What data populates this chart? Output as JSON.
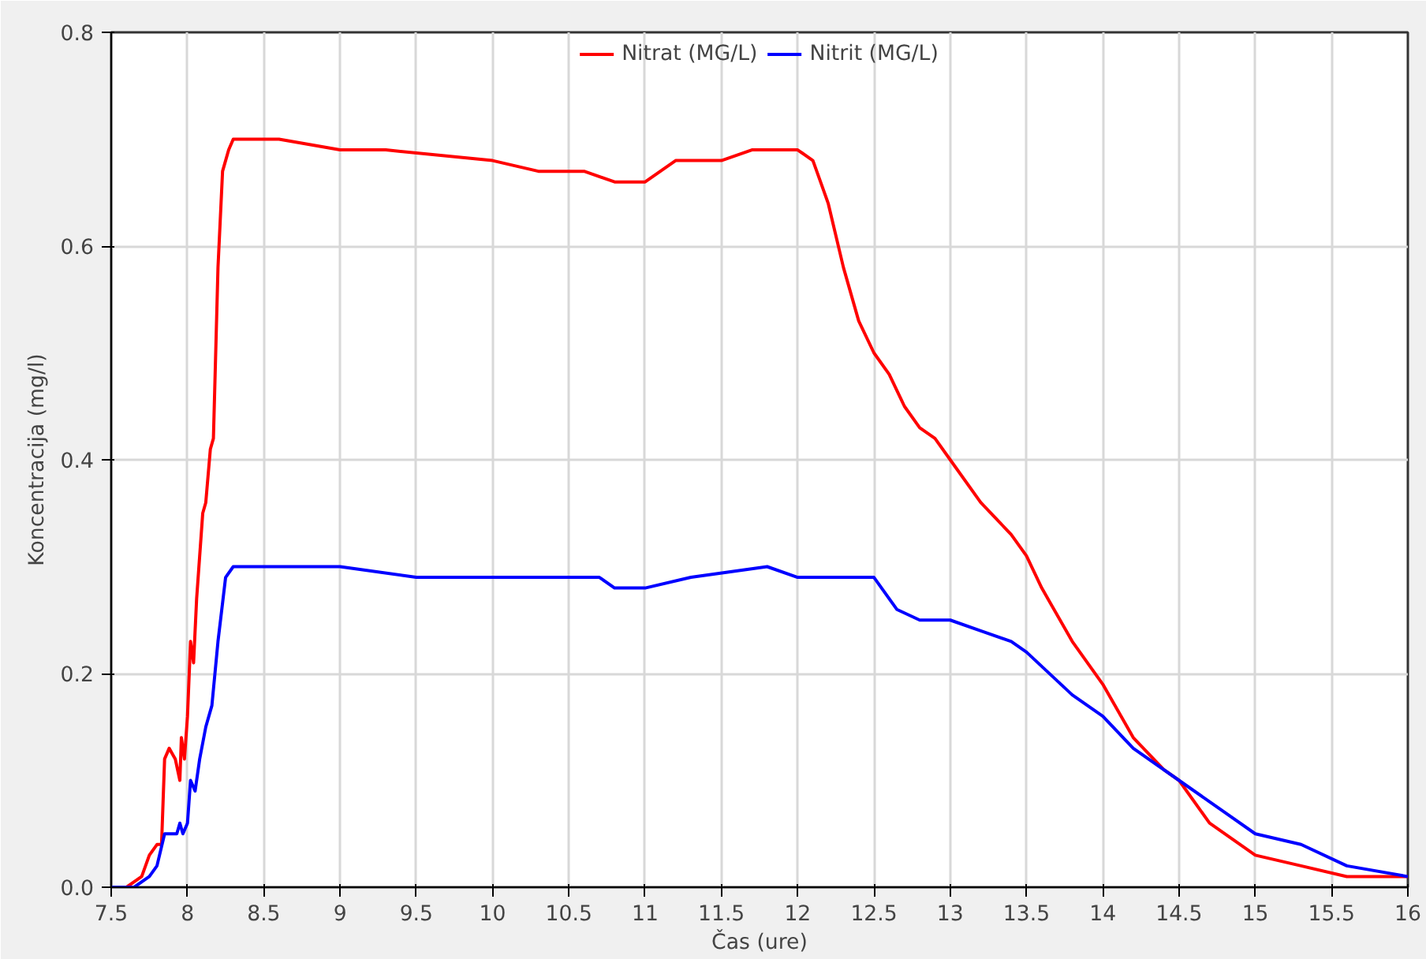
{
  "chart_data": {
    "type": "line",
    "xlabel": "Čas (ure)",
    "ylabel": "Koncentracija (mg/l)",
    "xlim": [
      7.5,
      16
    ],
    "ylim": [
      0,
      0.8
    ],
    "xticks": [
      7.5,
      8,
      8.5,
      9,
      9.5,
      10,
      10.5,
      11,
      11.5,
      12,
      12.5,
      13,
      13.5,
      14,
      14.5,
      15,
      15.5,
      16
    ],
    "yticks": [
      {
        "value": 0,
        "label": "0.0"
      },
      0.2,
      0.4,
      0.6,
      0.8
    ],
    "grid": true,
    "legend": "top",
    "marker": "none",
    "line_style": "solid",
    "series": [
      {
        "name": "Nitrat (MG/L)",
        "color": "#ff0000",
        "x": [
          7.5,
          7.6,
          7.7,
          7.75,
          7.8,
          7.83,
          7.85,
          7.88,
          7.92,
          7.95,
          7.96,
          7.98,
          8.0,
          8.02,
          8.04,
          8.06,
          8.1,
          8.12,
          8.15,
          8.17,
          8.2,
          8.23,
          8.27,
          8.3,
          8.5,
          8.6,
          9.0,
          9.3,
          10.0,
          10.3,
          10.6,
          10.8,
          11.0,
          11.1,
          11.2,
          11.3,
          11.5,
          11.7,
          11.8,
          12.0,
          12.1,
          12.15,
          12.2,
          12.3,
          12.4,
          12.5,
          12.6,
          12.7,
          12.8,
          12.9,
          13.0,
          13.2,
          13.4,
          13.5,
          13.6,
          13.8,
          14.0,
          14.2,
          14.4,
          14.5,
          14.7,
          15.0,
          15.3,
          15.6,
          16.0
        ],
        "values": [
          0,
          0,
          0.01,
          0.03,
          0.04,
          0.04,
          0.12,
          0.13,
          0.12,
          0.1,
          0.14,
          0.12,
          0.16,
          0.23,
          0.21,
          0.27,
          0.35,
          0.36,
          0.41,
          0.42,
          0.58,
          0.67,
          0.69,
          0.7,
          0.7,
          0.7,
          0.69,
          0.69,
          0.68,
          0.67,
          0.67,
          0.66,
          0.66,
          0.67,
          0.68,
          0.68,
          0.68,
          0.69,
          0.69,
          0.69,
          0.68,
          0.66,
          0.64,
          0.58,
          0.53,
          0.5,
          0.48,
          0.45,
          0.43,
          0.42,
          0.4,
          0.36,
          0.33,
          0.31,
          0.28,
          0.23,
          0.19,
          0.14,
          0.11,
          0.1,
          0.06,
          0.03,
          0.02,
          0.01,
          0.01
        ]
      },
      {
        "name": "Nitrit (MG/L)",
        "color": "#0000ff",
        "x": [
          7.5,
          7.65,
          7.75,
          7.8,
          7.85,
          7.9,
          7.93,
          7.95,
          7.97,
          8.0,
          8.02,
          8.05,
          8.08,
          8.12,
          8.16,
          8.2,
          8.25,
          8.3,
          8.5,
          9.0,
          9.5,
          10.0,
          10.3,
          10.7,
          10.8,
          11.0,
          11.3,
          11.8,
          12.0,
          12.2,
          12.5,
          12.55,
          12.65,
          12.8,
          13.0,
          13.2,
          13.4,
          13.5,
          13.8,
          14.0,
          14.2,
          14.5,
          14.8,
          15.0,
          15.3,
          15.6,
          16.0
        ],
        "values": [
          0,
          0,
          0.01,
          0.02,
          0.05,
          0.05,
          0.05,
          0.06,
          0.05,
          0.06,
          0.1,
          0.09,
          0.12,
          0.15,
          0.17,
          0.23,
          0.29,
          0.3,
          0.3,
          0.3,
          0.29,
          0.29,
          0.29,
          0.29,
          0.28,
          0.28,
          0.29,
          0.3,
          0.29,
          0.29,
          0.29,
          0.28,
          0.26,
          0.25,
          0.25,
          0.24,
          0.23,
          0.22,
          0.18,
          0.16,
          0.13,
          0.1,
          0.07,
          0.05,
          0.04,
          0.02,
          0.01
        ]
      }
    ]
  }
}
